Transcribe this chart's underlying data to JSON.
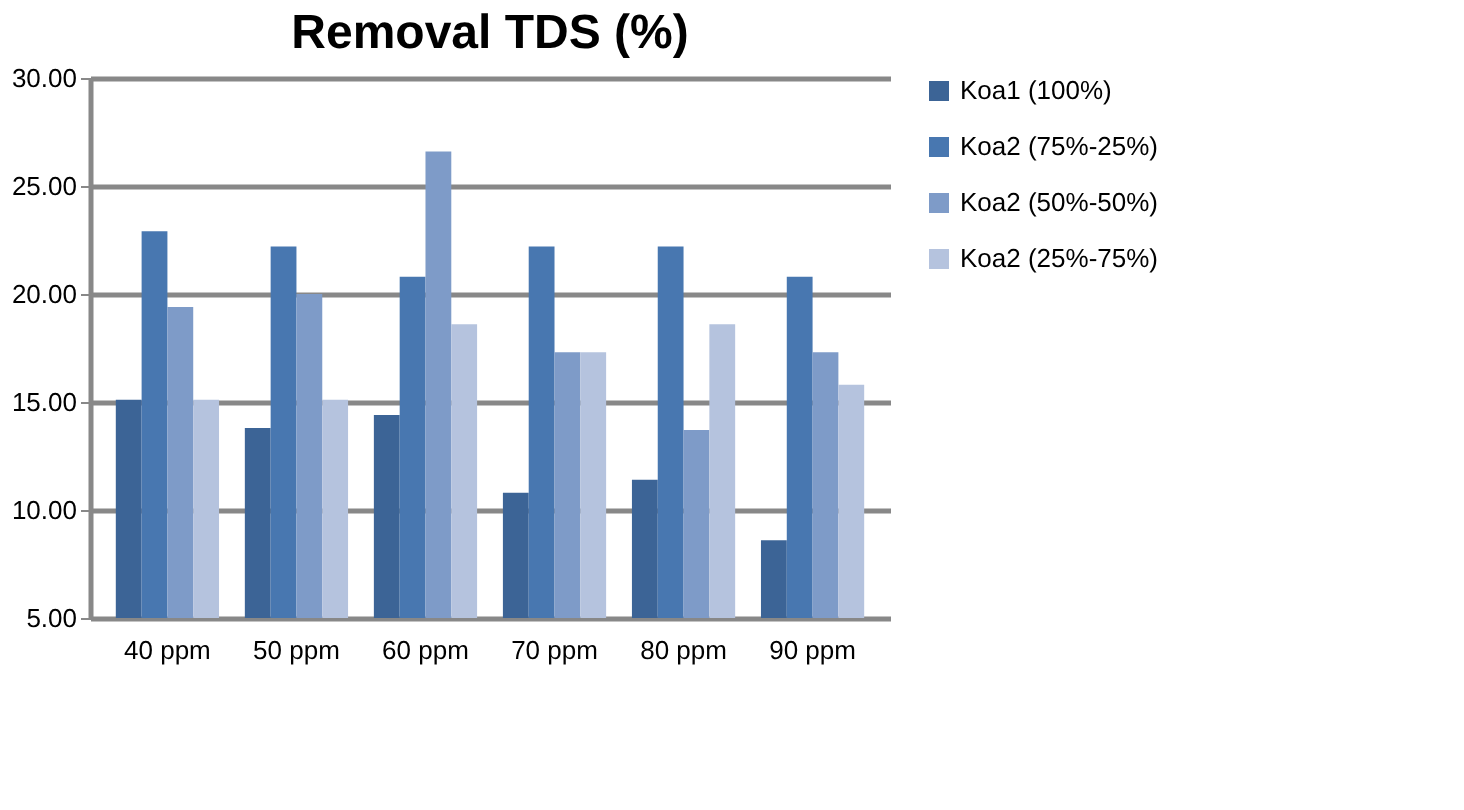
{
  "chart_data": {
    "type": "bar",
    "title": "Removal TDS (%)",
    "categories": [
      "40 ppm",
      "50 ppm",
      "60 ppm",
      "70 ppm",
      "80 ppm",
      "90 ppm"
    ],
    "series": [
      {
        "name": "Koa1 (100%)",
        "color": "#3c6496",
        "values": [
          15.1,
          13.8,
          14.4,
          10.8,
          11.4,
          8.6
        ]
      },
      {
        "name": "Koa2 (75%-25%)",
        "color": "#4877b0",
        "values": [
          22.9,
          22.2,
          20.8,
          22.2,
          22.2,
          20.8
        ]
      },
      {
        "name": "Koa2 (50%-50%)",
        "color": "#7e9bc8",
        "values": [
          19.4,
          20.0,
          26.6,
          17.3,
          13.7,
          17.3
        ]
      },
      {
        "name": "Koa2 (25%-75%)",
        "color": "#b5c3de",
        "values": [
          15.1,
          15.1,
          18.6,
          17.3,
          18.6,
          15.8
        ]
      }
    ],
    "ylim": [
      5,
      30
    ],
    "yticks": [
      {
        "value": 5,
        "label": "5.00"
      },
      {
        "value": 10,
        "label": "10.00"
      },
      {
        "value": 15,
        "label": "15.00"
      },
      {
        "value": 20,
        "label": "20.00"
      },
      {
        "value": 25,
        "label": "25.00"
      },
      {
        "value": 30,
        "label": "30.00"
      }
    ],
    "grid": "y",
    "legend": "right"
  }
}
